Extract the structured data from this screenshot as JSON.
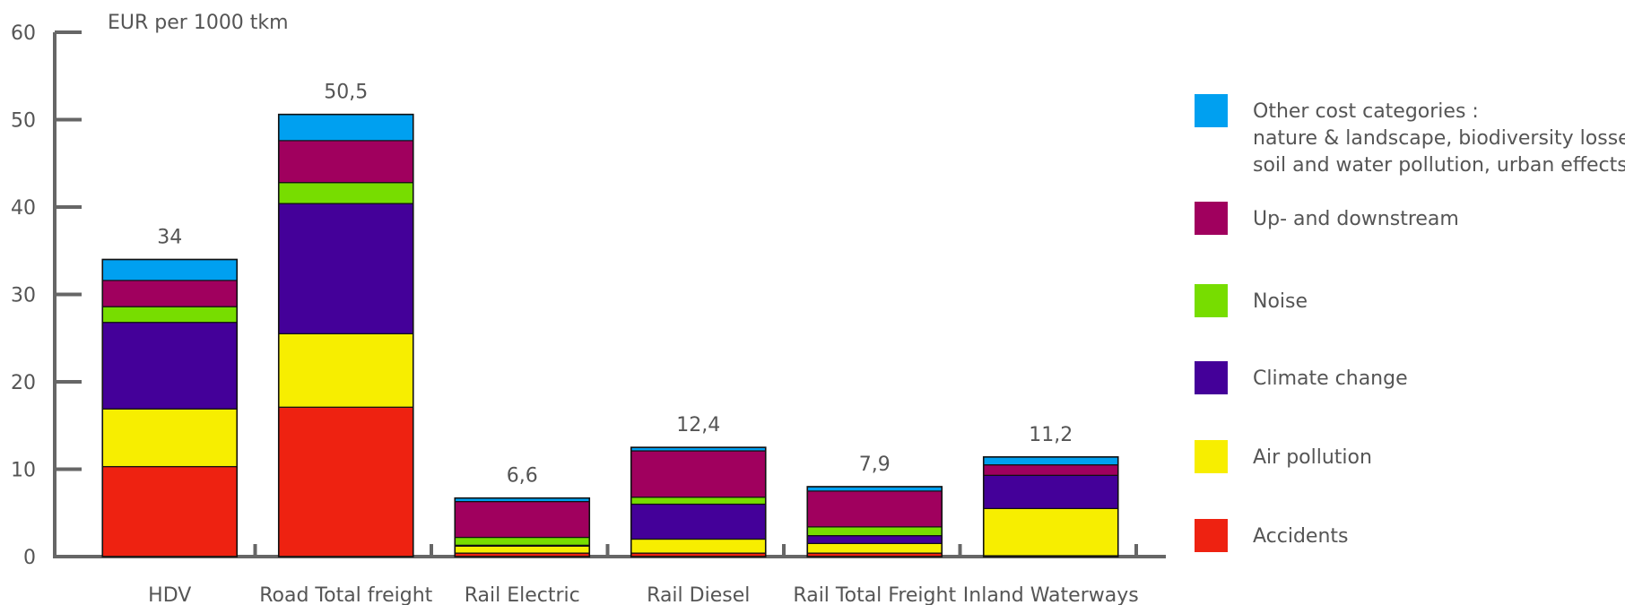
{
  "chart_data": {
    "type": "bar",
    "stacked": true,
    "ylabel": "EUR per 1000 tkm",
    "ylim": [
      0,
      60
    ],
    "yticks": [
      0,
      10,
      20,
      30,
      40,
      50,
      60
    ],
    "categories": [
      "HDV",
      "Road Total freight",
      "Rail Electric",
      "Rail Diesel",
      "Rail Total Freight",
      "Inland Waterways"
    ],
    "totals": [
      "34",
      "50,5",
      "6,6",
      "12,4",
      "7,9",
      "11,2"
    ],
    "series": [
      {
        "name": "Accidents",
        "color": "#ee2211",
        "values": [
          10.3,
          17.1,
          0.4,
          0.4,
          0.4,
          0.1
        ]
      },
      {
        "name": "Air pollution",
        "color": "#f7ee00",
        "values": [
          6.6,
          8.4,
          0.8,
          1.6,
          1.1,
          5.4
        ]
      },
      {
        "name": "Climate change",
        "color": "#440099",
        "values": [
          9.9,
          14.9,
          0.1,
          4.0,
          0.9,
          3.8
        ]
      },
      {
        "name": "Noise",
        "color": "#77dd00",
        "values": [
          1.8,
          2.4,
          0.9,
          0.8,
          1.0,
          0.0
        ]
      },
      {
        "name": "Up- and downstream",
        "color": "#a0005e",
        "values": [
          3.0,
          4.8,
          4.1,
          5.3,
          4.1,
          1.2
        ]
      },
      {
        "name": "Other cost categories",
        "color": "#00a0f0",
        "values": [
          2.4,
          3.0,
          0.4,
          0.4,
          0.5,
          0.9
        ]
      }
    ]
  },
  "legend": [
    {
      "color": "#00a0f0",
      "lines": [
        "Other cost categories :",
        "nature & landscape, biodiversity losses,",
        "soil and water pollution, urban effects"
      ]
    },
    {
      "color": "#a0005e",
      "lines": [
        "Up- and downstream"
      ]
    },
    {
      "color": "#77dd00",
      "lines": [
        "Noise"
      ]
    },
    {
      "color": "#440099",
      "lines": [
        "Climate change"
      ]
    },
    {
      "color": "#f7ee00",
      "lines": [
        "Air pollution"
      ]
    },
    {
      "color": "#ee2211",
      "lines": [
        "Accidents"
      ]
    }
  ]
}
